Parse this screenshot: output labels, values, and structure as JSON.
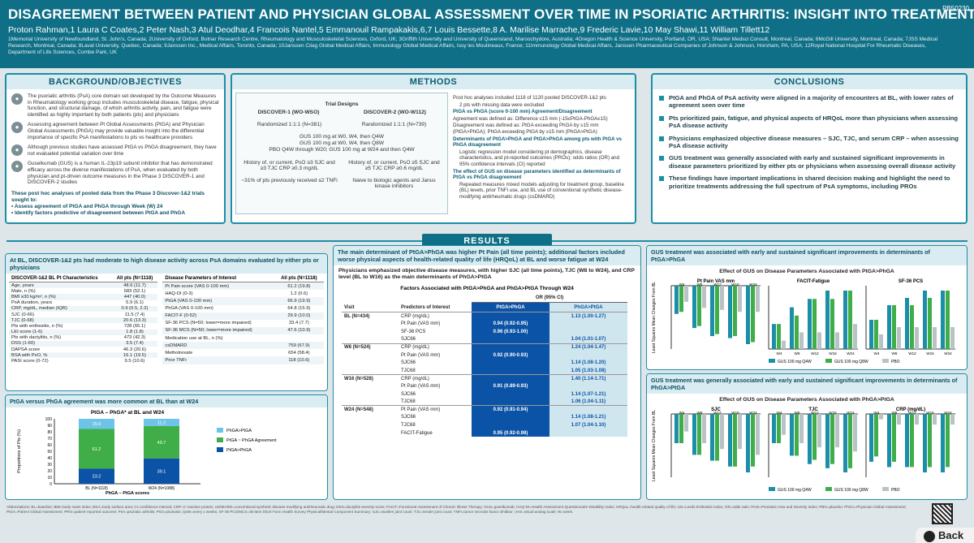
{
  "header": {
    "title": "DISAGREEMENT BETWEEN PATIENT AND PHYSICIAN GLOBAL ASSESSMENT OVER TIME IN PSORIATIC ARTHRITIS: INSIGHT INTO TREATMENT PRIORITIES",
    "poster_id": "PB50230",
    "authors": "Proton Rahman,1 Laura C Coates,2 Peter Nash,3 Atul Deodhar,4 Francois Nantel,5 Emmanouil Rampakakis,6,7 Louis Bessette,8 A. Marilise Marrache,9 Frederic Lavie,10 May Shawi,11 William Tillett12",
    "affiliations": "1Memorial University of Newfoundland, St. John's, Canada; 2University of Oxford, Botnar Research Centre, Rheumatology and Musculoskeletal Sciences, Oxford, UK; 3Griffith University and University of Queensland, Maroochydore, Australia; 4Oregon Health & Science University, Portland, OR, USA; 5Nantel Medsci Consult, Montreal, Canada; 6McGill University, Montreal, Canada; 7JSS Medical Research, Montreal, Canada; 8Laval University, Quebec, Canada; 9Janssen Inc., Medical Affairs, Toronto, Canada; 10Janssen Cilag Global Medical Affairs, Immunology Global Medical Affairs, Issy les Moulineaux, France; 11Immunology Global Medical Affairs, Janssen Pharmaceutical Companies of Johnson & Johnson, Horsham, PA, USA; 12Royal National Hospital For Rheumatic Diseases, Department of Life Sciences, Combe Park, UK"
  },
  "background": {
    "title": "BACKGROUND/OBJECTIVES",
    "items": [
      "The psoriatic arthritis (PsA) core domain set developed by the Outcome Measures in Rheumatology working group includes musculoskeletal disease, fatigue, physical function, and structural damage, of which arthritis activity, pain, and fatigue were identified as highly important by both patients (pts) and physicians",
      "Assessing agreement between Pt Global Assessments (PtGA) and Physician Global Assessments (PhGA) may provide valuable insight into the differential importance of specific PsA manifestations to pts vs healthcare providers",
      "Although previous studies have assessed PtGA vs PhGA disagreement, they have not evaluated potential variation over time",
      "Guselkumab (GUS) is a human IL-23p19 subunit inhibitor that has demonstrated efficacy across the diverse manifestations of PsA, when evaluated by both physician and pt-driven outcome measures in the Phase 3 DISCOVER-1 and DISCOVER-2 studies"
    ],
    "objective_intro": "These post hoc analyses of pooled data from the Phase 3 Discover-1&2 trials sought to:",
    "objectives": [
      "Assess agreement of PtGA and PhGA through Week (W) 24",
      "Identify factors predictive of disagreement between PtGA and PhGA"
    ]
  },
  "methods": {
    "title": "METHODS",
    "trial_header": "Trial Designs",
    "d1": "DISCOVER-1 (WO-WSO)",
    "d2": "DISCOVER-2 (WO-W112)",
    "r1": "Randomized 1:1:1 (N=381)",
    "r2": "Randomized 1:1:1 (N=739)",
    "dosing": "GUS 100 mg at W0, W4, then Q4W\nGUS 100 mg at W0, W4, then Q8W\nPBO Q4W through W20; GUS 100 mg at W24 and then Q4W",
    "inc1": "History of, or current, PsO ≥3 SJC and ≥3 TJC CRP ≥0.3 mg/dL",
    "inc2": "History of, or current, PsO ≥5 SJC and ≥5 TJC CRP ≥0.6 mg/dL",
    "tnf1": "~31% of pts previously received ≤2 TNFi",
    "tnf2": "Naive to biologic agents and Janus kinase inhibitors",
    "text": [
      "Post hoc analyses included 1118 of 1120 pooled DISCOVER-1&2 pts",
      "2 pts with missing data were excluded",
      "PtGA vs PhGA (score 0-100 mm) Agreement/Disagreement",
      "Agreement was defined as: Difference ≤15 mm (-15≤PtGA-PhGA≤15)",
      "Disagreement was defined as: PtGA exceeding PhGA by ≥15 mm (PtGA>PhGA); PhGA exceeding PtGA by ≥15 mm (PhGA>PtGA)",
      "Determinants of PtGA>PhGA and PtGA>PhGA among pts with PtGA vs PhGA disagreement",
      "Logistic regression model considering pt demographics, disease characteristics, and pt-reported outcomes (PROs); odds ratios (OR) and 95% confidence intervals (CI) reported",
      "The effect of GUS on disease parameters identified as determinants of PtGA vs PhGA disagreement",
      "Repeated measures mixed models adjusting for treatment group, baseline (BL) levels, prior TNFi use, and BL use of conventional synthetic disease-modifying antirheumatic drugs (csDMARD)"
    ]
  },
  "conclusions": {
    "title": "CONCLUSIONS",
    "items": [
      "PtGA and PhGA of PsA activity were aligned in a majority of encounters at BL, with lower rates of agreement seen over time",
      "Pts prioritized pain, fatigue, and physical aspects of HRQoL more than physicians when assessing PsA disease activity",
      "Physicians emphasized objective disease measures – SJC, TJC, and serum CRP – when assessing PsA disease activity",
      "GUS treatment was generally associated with early and sustained significant improvements in disease parameters prioritized by either pts or physicians when assessing overall disease activity",
      "These findings have important implications in shared decision making and highlight the need to prioritize treatments addressing the full spectrum of PsA symptoms, including PROs"
    ]
  },
  "results": {
    "label": "RESULTS",
    "bl_head": "At BL, DISCOVER-1&2 pts had moderate to high disease activity across PsA domains evaluated by either pts or physicians",
    "char_header": [
      "DISCOVER-1&2 BL Pt Characteristics",
      "All pts (N=1118)"
    ],
    "char_rows": [
      [
        "Age, years",
        "48.6 (11.7)"
      ],
      [
        "Male, n (%)",
        "583 (52.1)"
      ],
      [
        "BMI ≥30 kg/m², n (%)",
        "447 (40.0)"
      ],
      [
        "PsA duration, years",
        "5.9 (6.1)"
      ],
      [
        "CRP, mg/dL, median (IQR)",
        "0.9 (0.5, 2.2)"
      ],
      [
        "SJC (0-66)",
        "11.5 (7.4)"
      ],
      [
        "TJC (0-68)",
        "20.6 (13.3)"
      ],
      [
        "Pts with enthesitis, n (%)",
        "728 (65.1)"
      ],
      [
        "LEI score (1-6)",
        "1.8 (1.8)"
      ],
      [
        "Pts with dactylitis, n (%)",
        "473 (42.3)"
      ],
      [
        "DSS (1-60)",
        "3.5 (7.4)"
      ],
      [
        "DAPSA score",
        "46.3 (20.6)"
      ],
      [
        "BSA with PsO, %",
        "16.1 (19.5)"
      ],
      [
        "PASI score (0-72)",
        "9.5 (10.6)"
      ]
    ],
    "param_header": [
      "Disease Parameters of Interest",
      "All pts (N=1118)"
    ],
    "param_rows": [
      [
        "Pt Pain score (VAS 0-100 mm)",
        "61.2 (19.8)"
      ],
      [
        "HAQ-DI (0-3)",
        "1.2 (0.6)"
      ],
      [
        "PtGA (VAS 0-100 mm)",
        "66.9 (19.9)"
      ],
      [
        "PhGA (VAS 0-100 mm)",
        "64.8 (15.9)"
      ],
      [
        "FACIT-F (0-52)",
        "29.9 (10.0)"
      ],
      [
        "SF-36 PCS (N=50; lower=more impaired)",
        "33.4 (7.7)"
      ],
      [
        "SF-36 MCS (N=50; lower=more impaired)",
        "47.6 (10.9)"
      ],
      [
        "Medication use at BL, n (%)",
        ""
      ],
      [
        "csDMARD",
        "759 (67.9)"
      ],
      [
        "Methotrexate",
        "654 (58.4)"
      ],
      [
        "Prior TNFi",
        "118 (10.6)"
      ]
    ],
    "agree_head": "PtGA versus PhGA agreement was more common at BL than at W24",
    "main_head": "The main determinant of PtGA>PhGA was higher Pt Pain (all time points); additional factors included worse physical aspects of health-related quality of life (HRQoL) at BL and worse fatigue at W24",
    "phys_text": "Physicians emphasized objective disease measures, with higher SJC (all time points), TJC (W8 to W24), and CRP level (BL to W16) as the main determinants of PhGA>PtGA",
    "forest_title": "Factors Associated with PtGA>PhGA and PhGA>PtGA Through W24",
    "forest_cols": [
      "Visit",
      "Predictors of Interest",
      "PtGA>PhGA",
      "PhGA>PtGA"
    ],
    "or_header": "OR (95% CI)",
    "forest_rows": [
      [
        "BL (N=434)",
        "CRP (mg/dL)",
        "",
        "1.13 (1.00-1.27)"
      ],
      [
        "",
        "Pt Pain (VAS mm)",
        "0.94 (0.92-0.95)",
        ""
      ],
      [
        "",
        "SF-36 PCS",
        "0.96 (0.93-1.00)",
        ""
      ],
      [
        "",
        "SJC66",
        "",
        "1.04 (1.01-1.07)"
      ],
      [
        "W8 (N=524)",
        "CRP (mg/dL)",
        "",
        "1.24 (1.04-1.47)"
      ],
      [
        "",
        "Pt Pain (VAS mm)",
        "0.92 (0.90-0.93)",
        ""
      ],
      [
        "",
        "SJC66",
        "",
        "1.14 (1.08-1.20)"
      ],
      [
        "",
        "TJC68",
        "",
        "1.05 (1.03-1.08)"
      ],
      [
        "W16 (N=528)",
        "CRP (mg/dL)",
        "",
        "1.40 (1.14-1.71)"
      ],
      [
        "",
        "Pt Pain (VAS mm)",
        "0.91 (0.89-0.93)",
        ""
      ],
      [
        "",
        "SJC66",
        "",
        "1.14 (1.07-1.21)"
      ],
      [
        "",
        "TJC68",
        "",
        "1.06 (1.04-1.11)"
      ],
      [
        "W24 (N=548)",
        "Pt Pain (VAS mm)",
        "0.92 (0.91-0.94)",
        ""
      ],
      [
        "",
        "SJC66",
        "",
        "1.14 (1.08-1.21)"
      ],
      [
        "",
        "TJC68",
        "",
        "1.07 (1.04-1.10)"
      ],
      [
        "",
        "FACIT-Fatigue",
        "0.95 (0.92-0.98)",
        ""
      ]
    ],
    "gus1_head": "GUS treatment was associated with early and sustained significant improvements in determinants of PtGA>PhGA",
    "gus1_title": "Effect of GUS on Disease Parameters Associated with PtGA>PhGA",
    "gus2_head": "GUS treatment was generally associated with early and sustained significant improvements in determinants of PhGA>PtGA",
    "gus2_title": "Effect of GUS on Disease Parameters Associated with PhGA>PtGA",
    "gus_legend": [
      "GUS 100 mg Q4W",
      "GUS 100 mg Q8W",
      "PBO"
    ],
    "gus_ylabel": "Least Squares Mean Changes From BL"
  },
  "colors": {
    "header": "#0f6f86",
    "accent": "#1b8ea8",
    "dark_blue": "#0b53a6",
    "green": "#3fae49",
    "light_blue": "#6ec4e8"
  },
  "chart_data": [
    {
      "type": "bar",
      "title": "PtGA – PhGA* at BL and W24",
      "xlabel": "PhGA – PtGA scores",
      "ylabel": "Proportions of Pts (%)",
      "categories": [
        "BL (N=1118)",
        "W24 (N=1088)"
      ],
      "stacked": true,
      "ylim": [
        0,
        100
      ],
      "series": [
        {
          "name": "PtGA>PhGA",
          "values": [
            23.2,
            39.1
          ],
          "color": "#0b53a6"
        },
        {
          "name": "PtGA ~ PhGA Agreement",
          "values": [
            61.2,
            49.7
          ],
          "color": "#3fae49"
        },
        {
          "name": "PhGA>PtGA",
          "values": [
            15.6,
            11.2
          ],
          "color": "#6ec4e8"
        }
      ]
    },
    {
      "type": "bar",
      "title": "Effect of GUS on Disease Parameters Associated with PtGA>PhGA",
      "panels": [
        "Pt Pain VAS mm",
        "FACIT-Fatigue",
        "SF-36 PCS"
      ],
      "categories": [
        "W4",
        "W8",
        "W12",
        "W16",
        "W24"
      ],
      "series": [
        {
          "name": "GUS 100 mg Q4W",
          "values": [
            [
              -14,
              -21,
              -25,
              -26,
              -29
            ],
            [
              3,
              5,
              6,
              7,
              7
            ],
            [
              4,
              6,
              7,
              8,
              8
            ]
          ]
        },
        {
          "name": "GUS 100 mg Q8W",
          "values": [
            [
              -13,
              -20,
              -24,
              -25,
              -28
            ],
            [
              3,
              4,
              6,
              6,
              7
            ],
            [
              4,
              6,
              6,
              7,
              8
            ]
          ]
        },
        {
          "name": "PBO",
          "values": [
            [
              -8,
              -11,
              -12,
              -13,
              -13
            ],
            [
              1,
              2,
              2,
              2,
              3
            ],
            [
              2,
              3,
              3,
              3,
              3
            ]
          ]
        }
      ]
    },
    {
      "type": "bar",
      "title": "Effect of GUS on Disease Parameters Associated with PhGA>PtGA",
      "panels": [
        "SJC",
        "TJC",
        "CRP (mg/dL)"
      ],
      "categories": [
        "W4",
        "W8",
        "W12",
        "W16",
        "W24"
      ],
      "series": [
        {
          "name": "GUS 100 mg Q4W",
          "values": [
            [
              -5,
              -7,
              -8,
              -9,
              -10
            ],
            [
              -7,
              -10,
              -12,
              -13,
              -14
            ],
            [
              -0.9,
              -1.0,
              -1.0,
              -1.1,
              -1.1
            ]
          ]
        },
        {
          "name": "GUS 100 mg Q8W",
          "values": [
            [
              -5,
              -7,
              -8,
              -9,
              -9
            ],
            [
              -7,
              -10,
              -11,
              -12,
              -13
            ],
            [
              -0.8,
              -0.9,
              -1.0,
              -1.0,
              -1.0
            ]
          ]
        },
        {
          "name": "PBO",
          "values": [
            [
              -3,
              -5,
              -6,
              -6,
              -7
            ],
            [
              -5,
              -7,
              -8,
              -8,
              -9
            ],
            [
              -0.1,
              -0.2,
              -0.2,
              -0.2,
              -0.2
            ]
          ]
        }
      ]
    }
  ],
  "footer": "Abbreviations; BL=baseline; BMI=body mass index; BSA=body surface area; CI=confidence interval; CRP=C-reactive protein; csDMARD=conventional synthetic disease-modifying antirheumatic drug; DSS=dactylitis severity score; FACIT=Functional Assessment of Chronic Illness Therapy; GUS=guselkumab; HAQ-DI=Health Assessment Questionnaire-Disability Index; HRQoL=health-related quality of life; LEI=Leeds Enthesitis Index; OR=odds ratio; PASI=Psoriasis Area and Severity Index; PBO=placebo; PhGA=Physician Global Assessment; PtGA=Patient Global Assessment; PRO=patient-reported outcome; PsA=psoriatic arthritis; PsO=psoriasis; QxW=every x weeks; SF-36 PCS/MCS=36-item Short Form Health Survey Physical/Mental Component Summary; SJC=swollen joint count; TJC=tender joint count; TNFi=tumor necrosis factor inhibitor; VAS=visual analog scale; W=week.",
  "back_label": "Back"
}
